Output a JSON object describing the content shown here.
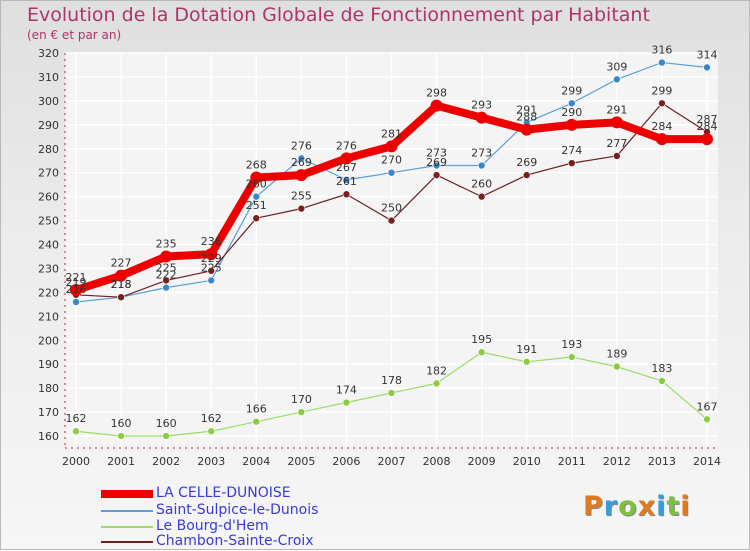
{
  "header": {
    "title": "Evolution de la Dotation Globale de Fonctionnement par Habitant",
    "subtitle": "(en € et par an)"
  },
  "logo": {
    "text": "Proxiti",
    "colors": [
      "#e07a1f",
      "#3a9bd9",
      "#7fbf3f",
      "#e07a1f",
      "#3a9bd9",
      "#7fbf3f",
      "#e07a1f"
    ]
  },
  "chart_data": {
    "type": "line",
    "title": "Evolution de la Dotation Globale de Fonctionnement par Habitant",
    "subtitle": "(en € et par an)",
    "x": [
      2000,
      2001,
      2002,
      2003,
      2004,
      2005,
      2006,
      2007,
      2008,
      2009,
      2010,
      2011,
      2012,
      2013,
      2014
    ],
    "ylim": [
      155,
      320
    ],
    "yticks": [
      160,
      170,
      180,
      190,
      200,
      210,
      220,
      230,
      240,
      250,
      260,
      270,
      280,
      290,
      300,
      310,
      320
    ],
    "grid": true,
    "legend_position": "bottom-left",
    "series": [
      {
        "name": "LA CELLE-DUNOISE",
        "color": "#ee0000",
        "values": [
          221,
          227,
          235,
          236,
          268,
          269,
          276,
          281,
          298,
          293,
          288,
          290,
          291,
          284,
          284
        ]
      },
      {
        "name": "Saint-Sulpice-le-Dunois",
        "color": "#5aa0d8",
        "values": [
          216,
          218,
          222,
          225,
          260,
          276,
          267,
          270,
          273,
          273,
          291,
          299,
          309,
          316,
          314
        ]
      },
      {
        "name": "Le Bourg-d'Hem",
        "color": "#99dd66",
        "values": [
          162,
          160,
          160,
          162,
          166,
          170,
          174,
          178,
          182,
          195,
          191,
          193,
          189,
          183,
          167
        ]
      },
      {
        "name": "Chambon-Sainte-Croix",
        "color": "#6b2020",
        "values": [
          219,
          218,
          225,
          229,
          251,
          255,
          261,
          250,
          269,
          260,
          269,
          274,
          277,
          299,
          287
        ]
      }
    ]
  }
}
